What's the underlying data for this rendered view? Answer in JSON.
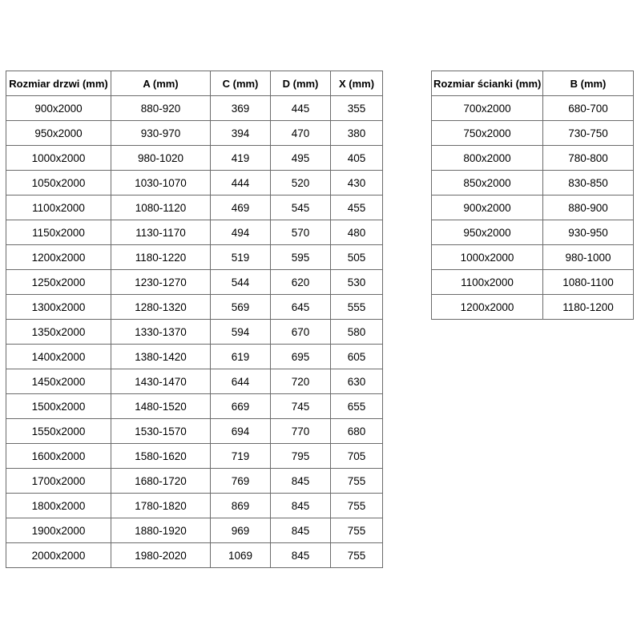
{
  "page": {
    "background_color": "#ffffff",
    "border_color": "#6b6b6b",
    "text_color": "#000000"
  },
  "door_table": {
    "headers": [
      "Rozmiar drzwi (mm)",
      "A (mm)",
      "C (mm)",
      "D (mm)",
      "X (mm)"
    ],
    "rows": [
      [
        "900x2000",
        "880-920",
        "369",
        "445",
        "355"
      ],
      [
        "950x2000",
        "930-970",
        "394",
        "470",
        "380"
      ],
      [
        "1000x2000",
        "980-1020",
        "419",
        "495",
        "405"
      ],
      [
        "1050x2000",
        "1030-1070",
        "444",
        "520",
        "430"
      ],
      [
        "1100x2000",
        "1080-1120",
        "469",
        "545",
        "455"
      ],
      [
        "1150x2000",
        "1130-1170",
        "494",
        "570",
        "480"
      ],
      [
        "1200x2000",
        "1180-1220",
        "519",
        "595",
        "505"
      ],
      [
        "1250x2000",
        "1230-1270",
        "544",
        "620",
        "530"
      ],
      [
        "1300x2000",
        "1280-1320",
        "569",
        "645",
        "555"
      ],
      [
        "1350x2000",
        "1330-1370",
        "594",
        "670",
        "580"
      ],
      [
        "1400x2000",
        "1380-1420",
        "619",
        "695",
        "605"
      ],
      [
        "1450x2000",
        "1430-1470",
        "644",
        "720",
        "630"
      ],
      [
        "1500x2000",
        "1480-1520",
        "669",
        "745",
        "655"
      ],
      [
        "1550x2000",
        "1530-1570",
        "694",
        "770",
        "680"
      ],
      [
        "1600x2000",
        "1580-1620",
        "719",
        "795",
        "705"
      ],
      [
        "1700x2000",
        "1680-1720",
        "769",
        "845",
        "755"
      ],
      [
        "1800x2000",
        "1780-1820",
        "869",
        "845",
        "755"
      ],
      [
        "1900x2000",
        "1880-1920",
        "969",
        "845",
        "755"
      ],
      [
        "2000x2000",
        "1980-2020",
        "1069",
        "845",
        "755"
      ]
    ]
  },
  "wall_table": {
    "headers": [
      "Rozmiar ścianki (mm)",
      "B (mm)"
    ],
    "rows": [
      [
        "700x2000",
        "680-700"
      ],
      [
        "750x2000",
        "730-750"
      ],
      [
        "800x2000",
        "780-800"
      ],
      [
        "850x2000",
        "830-850"
      ],
      [
        "900x2000",
        "880-900"
      ],
      [
        "950x2000",
        "930-950"
      ],
      [
        "1000x2000",
        "980-1000"
      ],
      [
        "1100x2000",
        "1080-1100"
      ],
      [
        "1200x2000",
        "1180-1200"
      ]
    ]
  }
}
